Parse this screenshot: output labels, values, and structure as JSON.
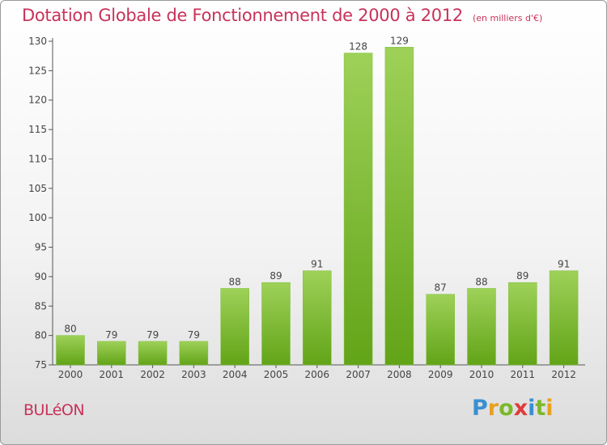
{
  "page": {
    "title": "Dotation Globale de Fonctionnement de 2000 à 2012",
    "subtitle": "(en milliers d'€)",
    "commune": "BULéON",
    "logo_letters": [
      {
        "ch": "P",
        "color": "#3a8fd0"
      },
      {
        "ch": "r",
        "color": "#e8a020"
      },
      {
        "ch": "o",
        "color": "#7cb82a"
      },
      {
        "ch": "x",
        "color": "#e03a3a"
      },
      {
        "ch": "i",
        "color": "#3a8fd0"
      },
      {
        "ch": "t",
        "color": "#7cb82a"
      },
      {
        "ch": "i",
        "color": "#e8a020"
      }
    ]
  },
  "chart_data": {
    "type": "bar",
    "title": "Dotation Globale de Fonctionnement de 2000 à 2012",
    "subtitle": "(en milliers d'€)",
    "categories": [
      "2000",
      "2001",
      "2002",
      "2003",
      "2004",
      "2005",
      "2006",
      "2007",
      "2008",
      "2009",
      "2010",
      "2011",
      "2012"
    ],
    "values": [
      80,
      79,
      79,
      79,
      88,
      89,
      91,
      128,
      129,
      87,
      88,
      89,
      91
    ],
    "data_labels": [
      "80",
      "79",
      "79",
      "79",
      "88",
      "89",
      "91",
      "128",
      "129",
      "87",
      "88",
      "89",
      "91"
    ],
    "y_ticks": [
      75,
      80,
      85,
      90,
      95,
      100,
      105,
      110,
      115,
      120,
      125,
      130
    ],
    "ylim": [
      75,
      130
    ],
    "xlabel": "",
    "ylabel": "",
    "grid": false,
    "bar_color_top": "#9ed158",
    "bar_color_bottom": "#62a418",
    "axis_color": "#555555"
  }
}
